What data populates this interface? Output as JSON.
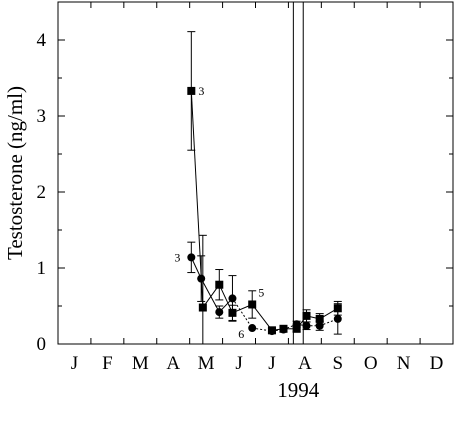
{
  "chart_data": {
    "type": "line",
    "ylabel": "Testosterone (ng/ml)",
    "xlabel": "1994",
    "x_tick_labels": [
      "J",
      "F",
      "M",
      "A",
      "M",
      "J",
      "J",
      "A",
      "S",
      "O",
      "N",
      "D"
    ],
    "y_ticks": [
      0,
      1,
      2,
      3,
      4
    ],
    "xlim": [
      0,
      12
    ],
    "ylim": [
      0,
      4.5
    ],
    "grid": false,
    "series": [
      {
        "marker": "square",
        "line_style": "solid",
        "points": [
          {
            "x": 4.05,
            "y": 3.33,
            "err": 0.78
          },
          {
            "x": 4.4,
            "y": 0.48,
            "err": 0.95
          },
          {
            "x": 4.9,
            "y": 0.78,
            "err": 0.2
          },
          {
            "x": 5.3,
            "y": 0.41,
            "err": 0.1
          },
          {
            "x": 5.9,
            "y": 0.52,
            "err": 0.18
          },
          {
            "x": 6.5,
            "y": 0.18,
            "err": 0.03
          },
          {
            "x": 6.85,
            "y": 0.2,
            "err": 0.03
          },
          {
            "x": 7.25,
            "y": 0.2,
            "err": 0.04
          },
          {
            "x": 7.55,
            "y": 0.37,
            "err": 0.08
          },
          {
            "x": 7.95,
            "y": 0.33,
            "err": 0.07
          },
          {
            "x": 8.5,
            "y": 0.47,
            "err": 0.09
          }
        ]
      },
      {
        "marker": "circle",
        "line_style": "solid-then-dotted",
        "points": [
          {
            "x": 4.05,
            "y": 1.14,
            "err": 0.2
          },
          {
            "x": 4.35,
            "y": 0.86,
            "err": 0.3
          },
          {
            "x": 4.9,
            "y": 0.42,
            "err": 0.08
          },
          {
            "x": 5.3,
            "y": 0.6,
            "err": 0.3
          },
          {
            "x": 5.9,
            "y": 0.21,
            "err": 0.0
          },
          {
            "x": 6.5,
            "y": 0.17,
            "err": 0.03
          },
          {
            "x": 6.85,
            "y": 0.19,
            "err": 0.03
          },
          {
            "x": 7.25,
            "y": 0.26,
            "err": 0.04
          },
          {
            "x": 7.55,
            "y": 0.24,
            "err": 0.05
          },
          {
            "x": 7.95,
            "y": 0.24,
            "err": 0.06
          },
          {
            "x": 8.5,
            "y": 0.33,
            "err": 0.2
          }
        ]
      }
    ],
    "annotations": [
      {
        "text": "3",
        "x": 4.05,
        "y": 3.33
      },
      {
        "text": "3",
        "x": 4.05,
        "y": 1.14
      },
      {
        "text": "5",
        "x": 5.9,
        "y": 0.52
      },
      {
        "text": "6",
        "x": 5.9,
        "y": 0.21
      }
    ],
    "vertical_lines_x": [
      7.15,
      7.45
    ]
  }
}
